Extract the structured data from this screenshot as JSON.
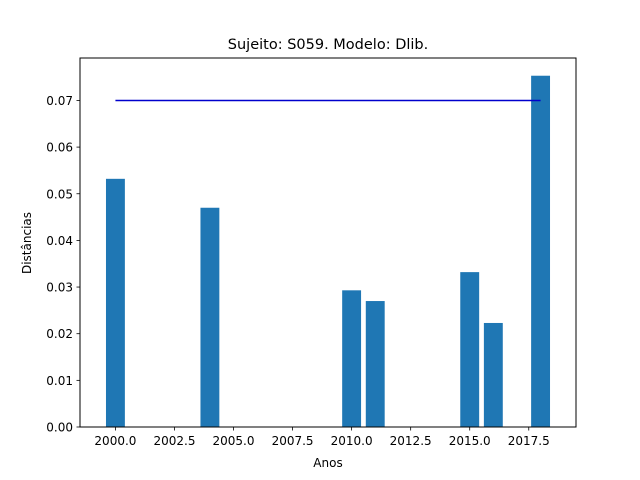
{
  "chart_data": {
    "type": "bar",
    "title": "Sujeito: S059. Modelo: Dlib.",
    "xlabel": "Anos",
    "ylabel": "Distâncias",
    "x": [
      2000,
      2004,
      2010,
      2011,
      2015,
      2016,
      2018
    ],
    "values": [
      0.0532,
      0.047,
      0.0293,
      0.027,
      0.0332,
      0.0223,
      0.0753
    ],
    "bar_width": 0.8,
    "bar_color": "#1f77b4",
    "threshold": {
      "value": 0.07,
      "x_start": 2000,
      "x_end": 2018,
      "color": "#0000cd"
    },
    "xlim": [
      1998.5,
      2019.5
    ],
    "ylim": [
      0,
      0.0791
    ],
    "xticks": [
      2000.0,
      2002.5,
      2005.0,
      2007.5,
      2010.0,
      2012.5,
      2015.0,
      2017.5
    ],
    "xtick_labels": [
      "2000.0",
      "2002.5",
      "2005.0",
      "2007.5",
      "2010.0",
      "2012.5",
      "2015.0",
      "2017.5"
    ],
    "yticks": [
      0.0,
      0.01,
      0.02,
      0.03,
      0.04,
      0.05,
      0.06,
      0.07
    ],
    "ytick_labels": [
      "0.00",
      "0.01",
      "0.02",
      "0.03",
      "0.04",
      "0.05",
      "0.06",
      "0.07"
    ],
    "grid": false,
    "legend": "none"
  }
}
